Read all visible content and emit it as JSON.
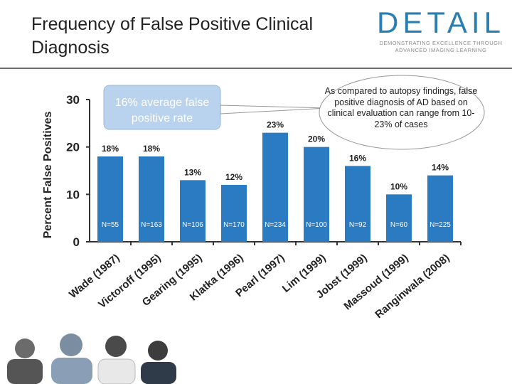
{
  "slide": {
    "title": "Frequency of False Positive Clinical Diagnosis",
    "logo_word": "DETAIL",
    "logo_tagline_1": "DEMONSTRATING EXCELLENCE THROUGH",
    "logo_tagline_2": "ADVANCED IMAGING LEARNING",
    "callout_text": "As compared to autopsy findings, false positive diagnosis of AD based on clinical evaluation can range from 10-23% of cases"
  },
  "colors": {
    "bar": "#2a7bc1",
    "title_text": "#222222",
    "logo_blue": "#2a7fb0",
    "badge_fill": "#b9d3ee",
    "rule": "#6d6d6d"
  },
  "chart_data": {
    "type": "bar",
    "ylabel": "Percent False Positives",
    "ylim": [
      0,
      30
    ],
    "yticks": [
      0,
      10,
      20,
      30
    ],
    "categories": [
      "Wade (1987)",
      "Victoroff (1995)",
      "Gearing (1995)",
      "Klatka (1996)",
      "Pearl (1997)",
      "Lim (1999)",
      "Jobst (1999)",
      "Massoud (1999)",
      "Ranginwala (2008)"
    ],
    "values": [
      18,
      18,
      13,
      12,
      23,
      20,
      16,
      10,
      14
    ],
    "value_labels": [
      "18%",
      "18%",
      "13%",
      "12%",
      "23%",
      "20%",
      "16%",
      "10%",
      "14%"
    ],
    "n_labels": [
      "N=55",
      "N=163",
      "N=106",
      "N=170",
      "N=234",
      "N=100",
      "N=92",
      "N=60",
      "N=225"
    ],
    "annotation_badge": "16% average false positive rate",
    "annotation_badge_lines": [
      "16% average false",
      "positive rate"
    ],
    "grid": false,
    "legend": "none"
  }
}
